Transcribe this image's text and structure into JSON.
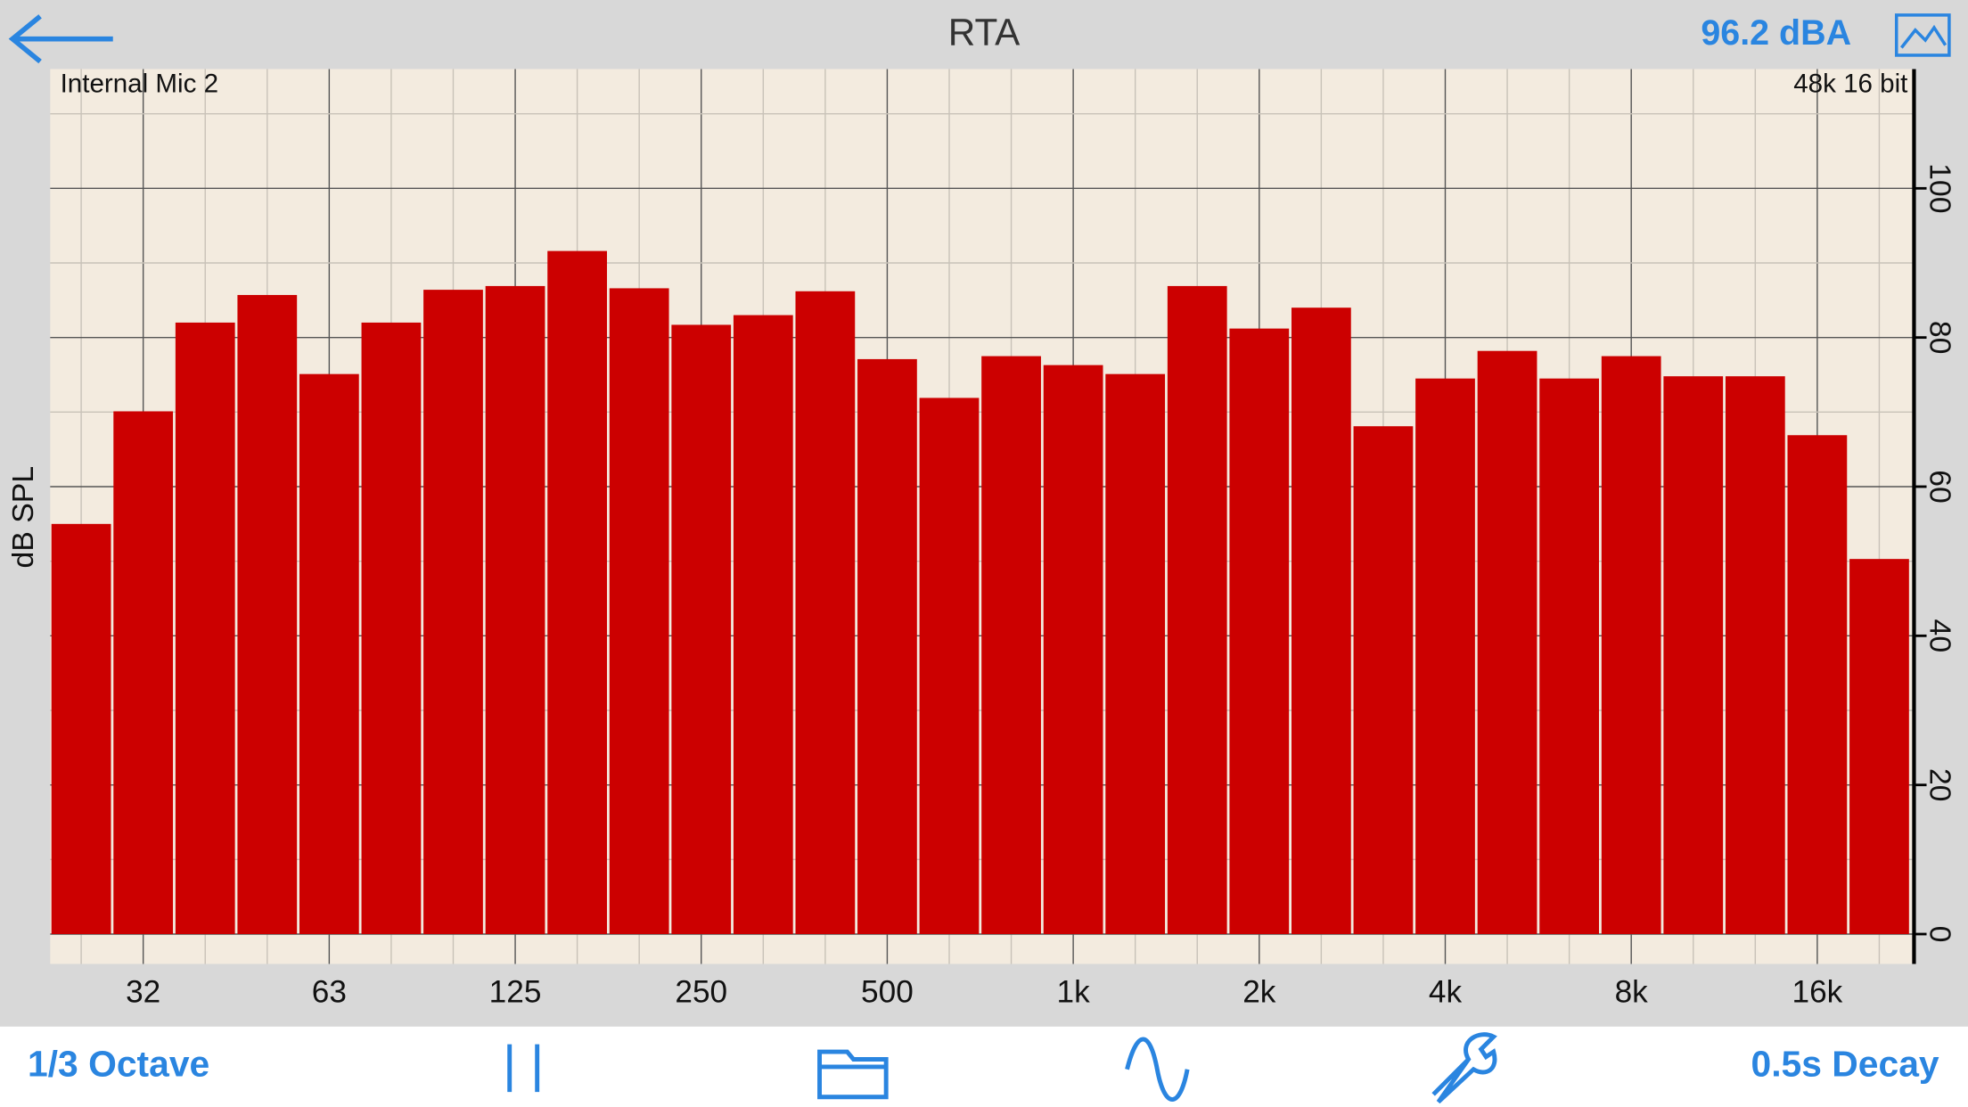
{
  "header": {
    "title": "RTA",
    "level": "96.2 dBA"
  },
  "chart_data": {
    "type": "bar",
    "y_label": "dB SPL",
    "annotations": [
      "Internal Mic 2",
      "48k 16 bit"
    ],
    "categories": [
      null,
      "32",
      null,
      null,
      "63",
      null,
      null,
      "125",
      null,
      null,
      "250",
      null,
      null,
      "500",
      null,
      null,
      "1k",
      null,
      null,
      "2k",
      null,
      null,
      "4k",
      null,
      null,
      "8k",
      null,
      null,
      "16k",
      null
    ],
    "values": [
      55.0,
      70.1,
      82.0,
      85.7,
      75.1,
      82.0,
      86.4,
      86.9,
      91.6,
      86.6,
      81.7,
      83.0,
      86.2,
      77.1,
      71.9,
      77.5,
      76.3,
      75.1,
      86.9,
      81.2,
      84.0,
      68.1,
      74.5,
      78.2,
      74.5,
      77.5,
      74.8,
      74.8,
      66.9,
      50.3
    ],
    "color": "#cc0000",
    "ylim": [
      -4,
      116
    ],
    "yticks": [
      0,
      20,
      40,
      60,
      80,
      100
    ],
    "minor_yticks": [
      10,
      30,
      50,
      70,
      90,
      110
    ],
    "grid": true
  },
  "toolbar": {
    "resolution": "1/3 Octave",
    "decay": "0.5s Decay"
  }
}
